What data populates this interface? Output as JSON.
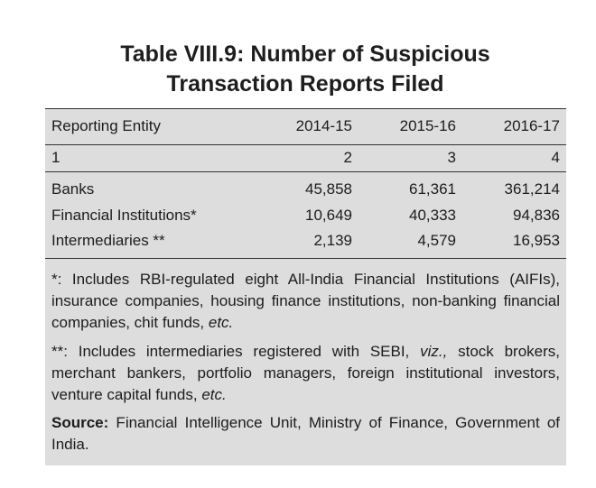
{
  "table": {
    "title_line1": "Table VIII.9: Number of Suspicious",
    "title_line2": "Transaction Reports Filed",
    "header": [
      "Reporting Entity",
      "2014-15",
      "2015-16",
      "2016-17"
    ],
    "index_row": [
      "1",
      "2",
      "3",
      "4"
    ],
    "rows": [
      [
        "Banks",
        "45,858",
        "61,361",
        "361,214"
      ],
      [
        "Financial Institutions*",
        "10,649",
        "40,333",
        "94,836"
      ],
      [
        "Intermediaries **",
        "2,139",
        "4,579",
        "16,953"
      ]
    ]
  },
  "notes": {
    "note1_text": "*: Includes RBI-regulated eight All-India Financial Institutions (AIFIs), insurance companies, housing finance institutions, non-banking financial companies, chit funds, ",
    "note1_etc": "etc.",
    "note2_text_a": "**: Includes intermediaries registered with SEBI, ",
    "note2_viz": "viz.,",
    "note2_text_b": " stock brokers, merchant bankers, portfolio managers, foreign institutional investors, venture capital funds, ",
    "note2_etc": "etc.",
    "source_label": "Source:",
    "source_text": " Financial Intelligence Unit, Ministry of Finance, Government of India."
  },
  "colors": {
    "panel_background": "#dddddd",
    "rule": "#333333",
    "text": "#1c1c1c"
  }
}
